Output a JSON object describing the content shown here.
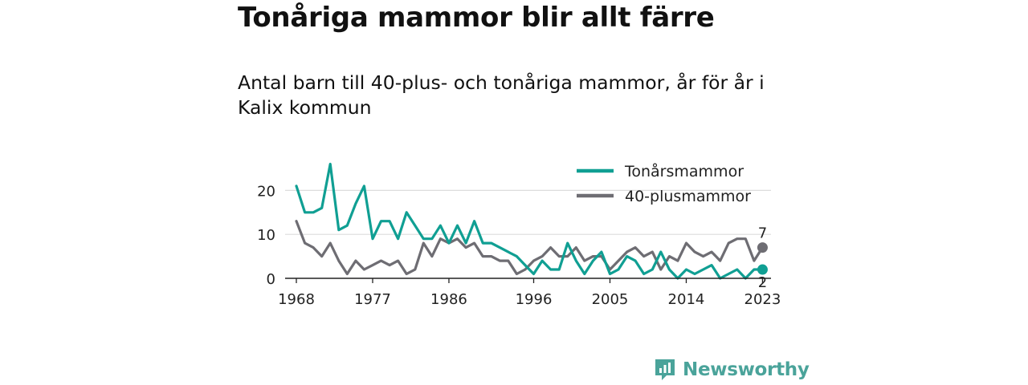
{
  "header": {
    "title": "Tonåriga mammor blir allt färre",
    "subtitle": "Antal barn till 40-plus- och tonåriga mammor, år för år i Kalix kommun"
  },
  "brand": {
    "name": "Newsworthy",
    "icon": "newsworthy-logo-icon",
    "color": "#4aa39a"
  },
  "chart_data": {
    "type": "line",
    "title": "",
    "xlabel": "",
    "ylabel": "",
    "ylim": [
      0,
      27
    ],
    "xlim": [
      1968,
      2024
    ],
    "grid": "horizontal",
    "legend_position": "top-right",
    "x_ticks": [
      1968,
      1977,
      1986,
      1996,
      2005,
      2014,
      2023
    ],
    "y_ticks": [
      0,
      10,
      20
    ],
    "x": [
      1968,
      1969,
      1970,
      1971,
      1972,
      1973,
      1974,
      1975,
      1976,
      1977,
      1978,
      1979,
      1980,
      1981,
      1982,
      1983,
      1984,
      1985,
      1986,
      1987,
      1988,
      1989,
      1990,
      1991,
      1992,
      1993,
      1994,
      1995,
      1996,
      1997,
      1998,
      1999,
      2000,
      2001,
      2002,
      2003,
      2004,
      2005,
      2006,
      2007,
      2008,
      2009,
      2010,
      2011,
      2012,
      2013,
      2014,
      2015,
      2016,
      2017,
      2018,
      2019,
      2020,
      2021,
      2022,
      2023
    ],
    "series": [
      {
        "name": "Tonårsmammor",
        "color": "#109f93",
        "end_label": "2",
        "values": [
          21,
          15,
          15,
          16,
          26,
          11,
          12,
          17,
          21,
          9,
          13,
          13,
          9,
          15,
          12,
          9,
          9,
          12,
          8,
          12,
          8,
          13,
          8,
          8,
          7,
          6,
          5,
          3,
          1,
          4,
          2,
          2,
          8,
          4,
          1,
          4,
          6,
          1,
          2,
          5,
          4,
          1,
          2,
          6,
          2,
          0,
          2,
          1,
          2,
          3,
          0,
          1,
          2,
          0,
          2,
          2
        ]
      },
      {
        "name": "40-plusmammor",
        "color": "#6e6d73",
        "end_label": "7",
        "values": [
          13,
          8,
          7,
          5,
          8,
          4,
          1,
          4,
          2,
          3,
          4,
          3,
          4,
          1,
          2,
          8,
          5,
          9,
          8,
          9,
          7,
          8,
          5,
          5,
          4,
          4,
          1,
          2,
          4,
          5,
          7,
          5,
          5,
          7,
          4,
          5,
          5,
          2,
          4,
          6,
          7,
          5,
          6,
          2,
          5,
          4,
          8,
          6,
          5,
          6,
          4,
          8,
          9,
          9,
          4,
          7
        ]
      }
    ]
  }
}
